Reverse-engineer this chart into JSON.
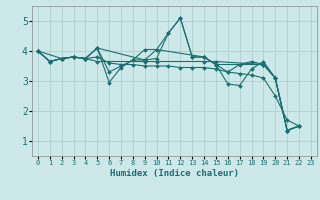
{
  "xlabel": "Humidex (Indice chaleur)",
  "background_color": "#cce8e8",
  "grid_color": "#aacccc",
  "line_color": "#1a7070",
  "xlim": [
    -0.5,
    23.5
  ],
  "ylim": [
    0.5,
    5.5
  ],
  "yticks": [
    1,
    2,
    3,
    4,
    5
  ],
  "xticks": [
    0,
    1,
    2,
    3,
    4,
    5,
    6,
    7,
    8,
    9,
    10,
    11,
    12,
    13,
    14,
    15,
    16,
    17,
    18,
    19,
    20,
    21,
    22,
    23
  ],
  "curves": [
    {
      "x": [
        0,
        1,
        2,
        3,
        4,
        5,
        6,
        7,
        8,
        9,
        10,
        11,
        12,
        13,
        14,
        15,
        16,
        17,
        18,
        19,
        20,
        21,
        22
      ],
      "y": [
        4.0,
        3.65,
        3.75,
        3.8,
        3.75,
        4.1,
        3.3,
        3.5,
        3.7,
        4.05,
        4.05,
        4.6,
        5.1,
        3.8,
        3.8,
        3.55,
        3.3,
        3.55,
        3.65,
        3.55,
        3.1,
        1.35,
        1.5
      ]
    },
    {
      "x": [
        0,
        1,
        2,
        3,
        4,
        5,
        6,
        7,
        8,
        9,
        10,
        11,
        12,
        13,
        14,
        15,
        16,
        17,
        18,
        19,
        20,
        21,
        22
      ],
      "y": [
        4.0,
        3.65,
        3.75,
        3.8,
        3.75,
        4.1,
        2.95,
        3.45,
        3.7,
        3.7,
        3.75,
        4.6,
        5.1,
        3.8,
        3.8,
        3.55,
        2.9,
        2.85,
        3.4,
        3.65,
        3.1,
        1.35,
        1.5
      ]
    },
    {
      "x": [
        0,
        2,
        3,
        4,
        5,
        9,
        10,
        14,
        15,
        19,
        20,
        21,
        22
      ],
      "y": [
        4.0,
        3.75,
        3.8,
        3.75,
        4.1,
        3.7,
        4.05,
        3.8,
        3.55,
        3.55,
        3.1,
        1.35,
        1.5
      ]
    },
    {
      "x": [
        0,
        1,
        2,
        3,
        4,
        5,
        6,
        7,
        8,
        9,
        10,
        11,
        12,
        13,
        14,
        15,
        16,
        17,
        18,
        19,
        20,
        21,
        22
      ],
      "y": [
        4.0,
        3.65,
        3.75,
        3.8,
        3.75,
        3.8,
        3.6,
        3.55,
        3.55,
        3.5,
        3.5,
        3.5,
        3.45,
        3.45,
        3.45,
        3.4,
        3.3,
        3.25,
        3.2,
        3.1,
        2.5,
        1.7,
        1.5
      ]
    },
    {
      "x": [
        0,
        1,
        2,
        3,
        4,
        5,
        9,
        10,
        14,
        15,
        19,
        20,
        21,
        22
      ],
      "y": [
        4.0,
        3.65,
        3.75,
        3.8,
        3.75,
        3.65,
        3.65,
        3.65,
        3.65,
        3.65,
        3.55,
        3.1,
        1.35,
        1.5
      ]
    }
  ]
}
